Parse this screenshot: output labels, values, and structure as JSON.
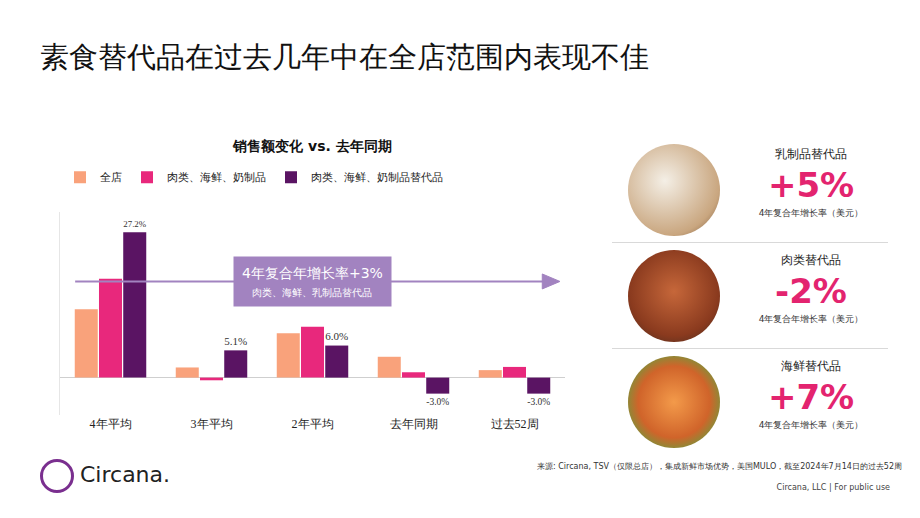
{
  "title": "素食替代品在过去几年中在全店范围内表现不佳",
  "chart_data": {
    "type": "bar",
    "title": "销售额变化 vs. 去年同期",
    "categories": [
      "4年平均",
      "3年平均",
      "2年平均",
      "去年同期",
      "过去52周"
    ],
    "series": [
      {
        "name": "全店",
        "color": "#f9a27b",
        "values": [
          12.8,
          1.9,
          8.3,
          3.9,
          1.4
        ]
      },
      {
        "name": "肉类、海鲜、奶制品",
        "color": "#e8287c",
        "values": [
          18.5,
          -0.5,
          9.5,
          1.0,
          2.0
        ]
      },
      {
        "name": "肉类、海鲜、奶制品替代品",
        "color": "#5a1463",
        "values": [
          27.2,
          5.1,
          6.0,
          -3.0,
          -3.0
        ],
        "value_labels": [
          "27.2%",
          "5.1%",
          "6.0%",
          "-3.0%",
          "-3.0%"
        ],
        "data_labels": true
      }
    ],
    "ylim": [
      -7,
      31
    ],
    "tick_labels": "x",
    "grid": false,
    "legend": "top left",
    "annotations": [
      {
        "text": "4年复合年增长率+3%",
        "subtext": "肉类、海鲜、乳制品替代品"
      }
    ]
  },
  "panels": [
    {
      "label": "乳制品替代品",
      "value": "+5%",
      "note": "4年复合年增长率（美元）"
    },
    {
      "label": "肉类替代品",
      "value": "-2%",
      "note": "4年复合年增长率（美元）"
    },
    {
      "label": "海鲜替代品",
      "value": "+7%",
      "note": "4年复合年增长率（美元）"
    }
  ],
  "footer": {
    "source": "来源: Circana, TSV（仅限总店），集成新鲜市场优势，美国MULO，截至2024年7月14日的过去52周",
    "logo": "Circana.",
    "copyright": "Circana, LLC | For public use"
  }
}
